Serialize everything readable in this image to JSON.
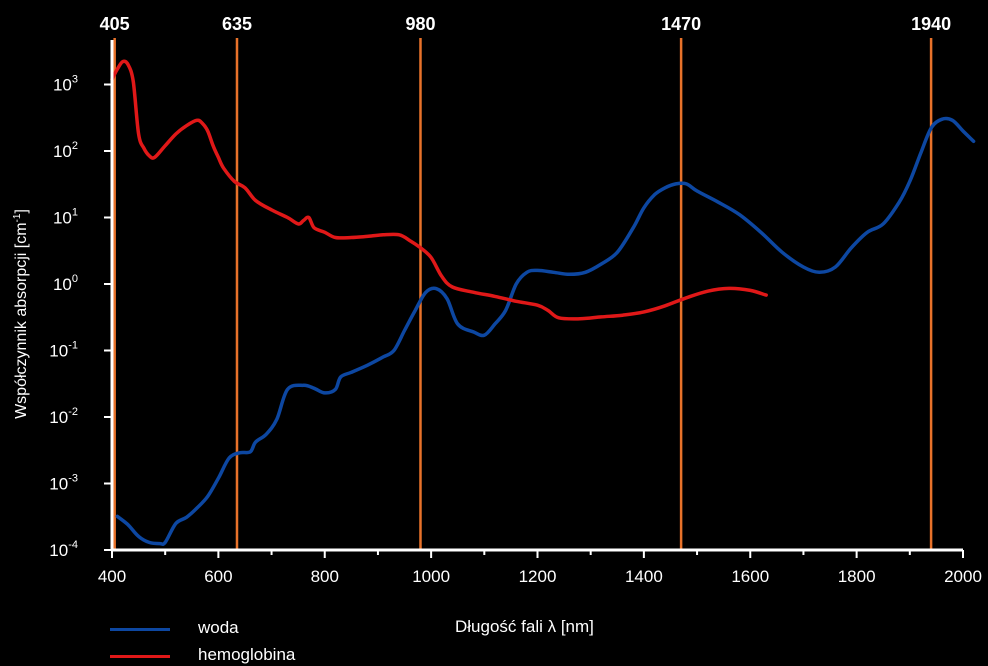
{
  "chart_data": {
    "type": "line",
    "xlabel": "Długość fali λ [nm]",
    "ylabel": "Współczynnik absorpcji [cm",
    "ylabel_sup": "-1",
    "ylabel_end": "]",
    "xlim": [
      400,
      2000
    ],
    "ylim": [
      0.0001,
      3000
    ],
    "yscale": "log",
    "x_ticks": [
      400,
      600,
      800,
      1000,
      1200,
      1400,
      1600,
      1800,
      2000
    ],
    "y_ticks": [
      {
        "exp": -4,
        "base": "10",
        "sup": "-4"
      },
      {
        "exp": -3,
        "base": "10",
        "sup": "-3"
      },
      {
        "exp": -2,
        "base": "10",
        "sup": "-2"
      },
      {
        "exp": -1,
        "base": "10",
        "sup": "-1"
      },
      {
        "exp": 0,
        "base": "10",
        "sup": "0"
      },
      {
        "exp": 1,
        "base": "10",
        "sup": "1"
      },
      {
        "exp": 2,
        "base": "10",
        "sup": "2"
      },
      {
        "exp": 3,
        "base": "10",
        "sup": "3"
      }
    ],
    "markers": [
      {
        "x": 405,
        "label": "405"
      },
      {
        "x": 635,
        "label": "635"
      },
      {
        "x": 980,
        "label": "980"
      },
      {
        "x": 1470,
        "label": "1470"
      },
      {
        "x": 1940,
        "label": "1940"
      }
    ],
    "marker_color": "#e8722a",
    "series": [
      {
        "name": "woda",
        "color": "#0d47a1",
        "points": [
          [
            410,
            0.00032
          ],
          [
            430,
            0.00024
          ],
          [
            450,
            0.00016
          ],
          [
            470,
            0.00013
          ],
          [
            490,
            0.000125
          ],
          [
            500,
            0.00013
          ],
          [
            520,
            0.00025
          ],
          [
            540,
            0.00031
          ],
          [
            560,
            0.00043
          ],
          [
            580,
            0.00064
          ],
          [
            600,
            0.0012
          ],
          [
            620,
            0.0024
          ],
          [
            640,
            0.0029
          ],
          [
            660,
            0.003
          ],
          [
            670,
            0.0042
          ],
          [
            690,
            0.0055
          ],
          [
            710,
            0.0093
          ],
          [
            730,
            0.026
          ],
          [
            760,
            0.03
          ],
          [
            780,
            0.027
          ],
          [
            800,
            0.023
          ],
          [
            820,
            0.026
          ],
          [
            830,
            0.04
          ],
          [
            850,
            0.047
          ],
          [
            880,
            0.06
          ],
          [
            910,
            0.08
          ],
          [
            930,
            0.1
          ],
          [
            950,
            0.2
          ],
          [
            970,
            0.4
          ],
          [
            990,
            0.75
          ],
          [
            1010,
            0.85
          ],
          [
            1030,
            0.6
          ],
          [
            1050,
            0.25
          ],
          [
            1080,
            0.19
          ],
          [
            1100,
            0.17
          ],
          [
            1120,
            0.25
          ],
          [
            1140,
            0.4
          ],
          [
            1160,
            1.0
          ],
          [
            1180,
            1.5
          ],
          [
            1200,
            1.6
          ],
          [
            1230,
            1.5
          ],
          [
            1260,
            1.4
          ],
          [
            1290,
            1.5
          ],
          [
            1320,
            2.0
          ],
          [
            1350,
            3.0
          ],
          [
            1380,
            7.0
          ],
          [
            1400,
            14
          ],
          [
            1420,
            22
          ],
          [
            1440,
            28
          ],
          [
            1460,
            32
          ],
          [
            1480,
            32
          ],
          [
            1500,
            25
          ],
          [
            1540,
            17
          ],
          [
            1580,
            11
          ],
          [
            1620,
            6
          ],
          [
            1660,
            3
          ],
          [
            1700,
            1.8
          ],
          [
            1730,
            1.5
          ],
          [
            1760,
            1.8
          ],
          [
            1790,
            3.5
          ],
          [
            1820,
            6
          ],
          [
            1850,
            8.0
          ],
          [
            1880,
            17
          ],
          [
            1900,
            35
          ],
          [
            1920,
            90
          ],
          [
            1940,
            220
          ],
          [
            1960,
            300
          ],
          [
            1980,
            290
          ],
          [
            2000,
            200
          ],
          [
            2020,
            140
          ]
        ]
      },
      {
        "name": "hemoglobina",
        "color": "#e01818",
        "points": [
          [
            400,
            1200
          ],
          [
            410,
            1700
          ],
          [
            420,
            2200
          ],
          [
            430,
            2000
          ],
          [
            440,
            1100
          ],
          [
            450,
            180
          ],
          [
            460,
            110
          ],
          [
            470,
            85
          ],
          [
            480,
            80
          ],
          [
            500,
            120
          ],
          [
            520,
            180
          ],
          [
            540,
            240
          ],
          [
            560,
            290
          ],
          [
            570,
            260
          ],
          [
            580,
            200
          ],
          [
            590,
            120
          ],
          [
            600,
            80
          ],
          [
            610,
            55
          ],
          [
            630,
            35
          ],
          [
            650,
            28
          ],
          [
            670,
            18
          ],
          [
            700,
            13
          ],
          [
            730,
            10
          ],
          [
            750,
            8
          ],
          [
            760,
            9
          ],
          [
            770,
            10
          ],
          [
            780,
            7
          ],
          [
            800,
            6
          ],
          [
            820,
            5
          ],
          [
            850,
            5
          ],
          [
            880,
            5.2
          ],
          [
            910,
            5.5
          ],
          [
            940,
            5.5
          ],
          [
            960,
            4.5
          ],
          [
            980,
            3.5
          ],
          [
            1000,
            2.5
          ],
          [
            1020,
            1.3
          ],
          [
            1040,
            0.9
          ],
          [
            1080,
            0.75
          ],
          [
            1120,
            0.65
          ],
          [
            1160,
            0.55
          ],
          [
            1200,
            0.48
          ],
          [
            1220,
            0.4
          ],
          [
            1240,
            0.31
          ],
          [
            1280,
            0.3
          ],
          [
            1320,
            0.32
          ],
          [
            1360,
            0.34
          ],
          [
            1400,
            0.38
          ],
          [
            1440,
            0.47
          ],
          [
            1480,
            0.62
          ],
          [
            1520,
            0.78
          ],
          [
            1560,
            0.86
          ],
          [
            1600,
            0.8
          ],
          [
            1630,
            0.68
          ]
        ]
      }
    ]
  }
}
